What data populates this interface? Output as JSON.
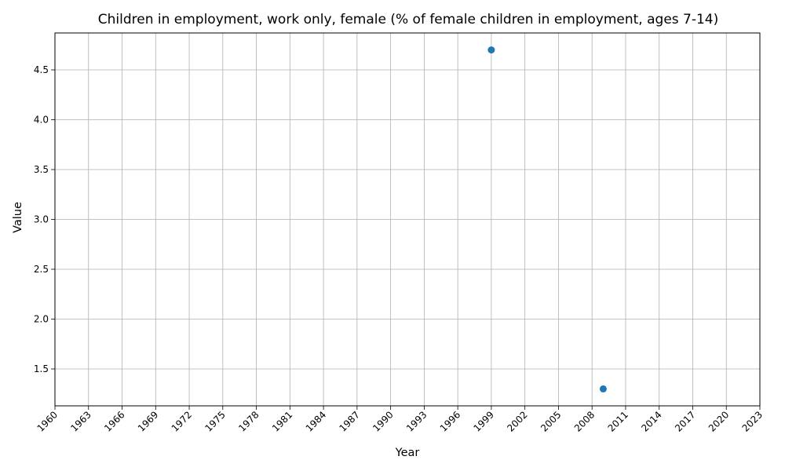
{
  "chart_data": {
    "type": "scatter",
    "title": "Children in employment, work only, female (% of female children in employment, ages 7-14)",
    "xlabel": "Year",
    "ylabel": "Value",
    "x_ticks": [
      1960,
      1963,
      1966,
      1969,
      1972,
      1975,
      1978,
      1981,
      1984,
      1987,
      1990,
      1993,
      1996,
      1999,
      2002,
      2005,
      2008,
      2011,
      2014,
      2017,
      2020,
      2023
    ],
    "y_ticks": [
      "1.5",
      "2.0",
      "2.5",
      "3.0",
      "3.5",
      "4.0",
      "4.5"
    ],
    "xlim": [
      1960,
      2023
    ],
    "ylim": [
      1.13,
      4.87
    ],
    "grid": true,
    "legend": "none",
    "series": [
      {
        "color": "#1f77b4",
        "points": [
          {
            "x": 1999,
            "y": 4.7
          },
          {
            "x": 2009,
            "y": 1.3
          }
        ]
      }
    ]
  }
}
